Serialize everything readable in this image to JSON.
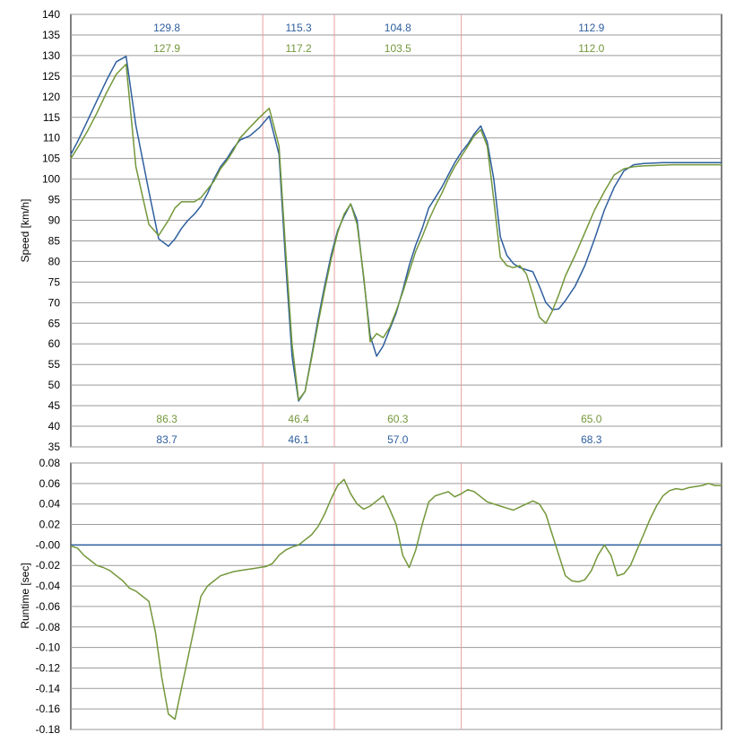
{
  "chart_data": [
    {
      "type": "line",
      "ylabel": "Speed [km/h]",
      "ylim": [
        35,
        140
      ],
      "y_ticks": [
        "140",
        "135",
        "130",
        "125",
        "120",
        "115",
        "110",
        "105",
        "100",
        "95",
        "90",
        "85",
        "80",
        "75",
        "70",
        "65",
        "60",
        "55",
        "50",
        "45",
        "40",
        "35"
      ],
      "grid": true,
      "x": [
        0,
        2,
        5,
        8,
        11,
        14,
        17,
        20,
        24,
        27,
        30,
        32,
        34,
        36,
        38,
        40,
        42,
        44,
        46,
        48,
        50,
        52,
        55,
        58,
        61,
        64,
        66,
        68,
        70,
        72,
        74,
        76,
        78,
        80,
        82,
        84,
        86,
        88,
        90,
        92,
        94,
        96,
        98,
        100,
        102,
        104,
        106,
        108,
        110,
        112,
        114,
        116,
        118,
        120,
        122,
        124,
        126,
        128,
        130,
        132,
        134,
        136,
        138,
        140,
        142,
        144,
        146,
        148,
        150,
        152,
        155,
        158,
        161,
        164,
        167,
        170,
        173,
        176,
        179,
        182,
        185,
        188,
        191,
        194,
        197,
        200
      ],
      "series": [
        {
          "color": "#2e5f9e",
          "values": [
            106.0,
            109.0,
            114.0,
            119.0,
            124.0,
            128.5,
            129.8,
            113.0,
            97.0,
            85.5,
            83.7,
            85.5,
            88.0,
            90.0,
            91.5,
            93.5,
            96.5,
            100.0,
            103.0,
            105.0,
            107.5,
            109.5,
            110.5,
            112.5,
            115.3,
            106.0,
            80.0,
            57.0,
            46.1,
            48.5,
            57.0,
            66.0,
            74.0,
            81.5,
            87.5,
            91.0,
            94.0,
            90.0,
            76.0,
            62.0,
            57.0,
            59.5,
            63.5,
            67.5,
            73.0,
            79.0,
            84.0,
            88.0,
            93.0,
            95.5,
            98.0,
            101.0,
            104.0,
            106.5,
            108.5,
            111.0,
            112.9,
            109.0,
            100.0,
            86.0,
            81.5,
            79.5,
            78.5,
            78.0,
            77.5,
            74.0,
            70.0,
            68.3,
            68.5,
            70.5,
            74.0,
            79.0,
            85.5,
            92.5,
            98.0,
            102.0,
            103.5,
            103.8,
            103.9,
            104.0,
            104.0,
            104.0,
            104.0,
            104.0,
            104.0,
            104.0
          ]
        },
        {
          "color": "#73973a",
          "values": [
            105.0,
            107.5,
            111.5,
            116.0,
            121.0,
            125.5,
            127.9,
            103.0,
            89.0,
            86.3,
            90.0,
            93.0,
            94.5,
            94.5,
            94.5,
            95.5,
            97.5,
            99.5,
            102.5,
            104.5,
            107.0,
            110.0,
            112.5,
            115.0,
            117.2,
            108.0,
            83.0,
            60.0,
            46.4,
            48.5,
            56.5,
            65.0,
            73.0,
            80.5,
            87.0,
            91.5,
            94.0,
            89.0,
            76.5,
            60.5,
            62.5,
            61.5,
            64.0,
            68.0,
            72.5,
            77.5,
            82.5,
            86.0,
            90.0,
            93.5,
            96.5,
            100.0,
            103.0,
            105.5,
            108.0,
            110.5,
            112.0,
            108.0,
            95.0,
            81.0,
            79.0,
            78.5,
            79.0,
            77.0,
            72.0,
            66.5,
            65.0,
            68.0,
            72.0,
            76.5,
            81.5,
            87.0,
            92.5,
            97.0,
            101.0,
            102.5,
            103.0,
            103.2,
            103.3,
            103.4,
            103.5,
            103.5,
            103.5,
            103.5,
            103.5,
            103.5
          ]
        }
      ],
      "segment_boundaries": [
        59,
        81,
        120
      ],
      "max_labels": {
        "series_1": [
          "129.8",
          "115.3",
          "104.8",
          "112.9"
        ],
        "series_2": [
          "127.9",
          "117.2",
          "103.5",
          "112.0"
        ]
      },
      "min_labels": {
        "series_1": [
          "83.7",
          "46.1",
          "57.0",
          "68.3"
        ],
        "series_2": [
          "86.3",
          "46.4",
          "60.3",
          "65.0"
        ]
      }
    },
    {
      "type": "line",
      "ylabel": "Runtime [sec]",
      "ylim": [
        -0.18,
        0.08
      ],
      "y_ticks": [
        "0.08",
        "0.06",
        "0.04",
        "0.02",
        "-0.00",
        "-0.02",
        "-0.04",
        "-0.06",
        "-0.08",
        "-0.10",
        "-0.12",
        "-0.14",
        "-0.16",
        "-0.18"
      ],
      "grid": true,
      "x": [
        0,
        2,
        4,
        6,
        8,
        10,
        12,
        14,
        16,
        18,
        20,
        22,
        24,
        26,
        28,
        30,
        32,
        34,
        36,
        38,
        40,
        42,
        44,
        46,
        48,
        50,
        52,
        54,
        56,
        58,
        60,
        62,
        64,
        66,
        68,
        70,
        72,
        74,
        76,
        78,
        80,
        82,
        84,
        86,
        88,
        90,
        92,
        94,
        96,
        98,
        100,
        102,
        104,
        106,
        108,
        110,
        112,
        114,
        116,
        118,
        120,
        122,
        124,
        126,
        128,
        130,
        132,
        134,
        136,
        138,
        140,
        142,
        144,
        146,
        148,
        150,
        152,
        154,
        156,
        158,
        160,
        162,
        164,
        166,
        168,
        170,
        172,
        174,
        176,
        178,
        180,
        182,
        184,
        186,
        188,
        190,
        192,
        194,
        196,
        198,
        200
      ],
      "series": [
        {
          "color": "#2e5f9e",
          "values": [
            0,
            0,
            0,
            0,
            0,
            0,
            0,
            0,
            0,
            0,
            0,
            0,
            0,
            0,
            0,
            0,
            0,
            0,
            0,
            0,
            0,
            0,
            0,
            0,
            0,
            0,
            0,
            0,
            0,
            0,
            0,
            0,
            0,
            0,
            0,
            0,
            0,
            0,
            0,
            0,
            0,
            0,
            0,
            0,
            0,
            0,
            0,
            0,
            0,
            0,
            0,
            0,
            0,
            0,
            0,
            0,
            0,
            0,
            0,
            0,
            0,
            0,
            0,
            0,
            0,
            0,
            0,
            0,
            0,
            0,
            0,
            0,
            0,
            0,
            0,
            0,
            0,
            0,
            0,
            0,
            0,
            0,
            0,
            0,
            0,
            0,
            0,
            0,
            0,
            0,
            0,
            0,
            0,
            0,
            0,
            0,
            0,
            0,
            0,
            0,
            0
          ]
        },
        {
          "color": "#73973a",
          "values": [
            -0.001,
            -0.003,
            -0.01,
            -0.015,
            -0.02,
            -0.022,
            -0.025,
            -0.03,
            -0.035,
            -0.042,
            -0.045,
            -0.05,
            -0.055,
            -0.085,
            -0.13,
            -0.165,
            -0.17,
            -0.14,
            -0.11,
            -0.08,
            -0.05,
            -0.04,
            -0.035,
            -0.03,
            -0.028,
            -0.026,
            -0.025,
            -0.024,
            -0.023,
            -0.022,
            -0.021,
            -0.018,
            -0.01,
            -0.005,
            -0.002,
            0.0,
            0.005,
            0.01,
            0.018,
            0.03,
            0.045,
            0.058,
            0.064,
            0.05,
            0.04,
            0.035,
            0.038,
            0.043,
            0.048,
            0.035,
            0.02,
            -0.01,
            -0.022,
            -0.005,
            0.02,
            0.042,
            0.048,
            0.05,
            0.052,
            0.047,
            0.05,
            0.054,
            0.052,
            0.047,
            0.042,
            0.04,
            0.038,
            0.036,
            0.034,
            0.037,
            0.04,
            0.043,
            0.04,
            0.03,
            0.01,
            -0.01,
            -0.03,
            -0.035,
            -0.036,
            -0.034,
            -0.025,
            -0.01,
            0.0,
            -0.01,
            -0.03,
            -0.028,
            -0.02,
            -0.005,
            0.01,
            0.025,
            0.038,
            0.048,
            0.053,
            0.055,
            0.054,
            0.056,
            0.057,
            0.058,
            0.06,
            0.058,
            0.058
          ]
        }
      ],
      "segment_boundaries": [
        59,
        81,
        120
      ]
    }
  ]
}
